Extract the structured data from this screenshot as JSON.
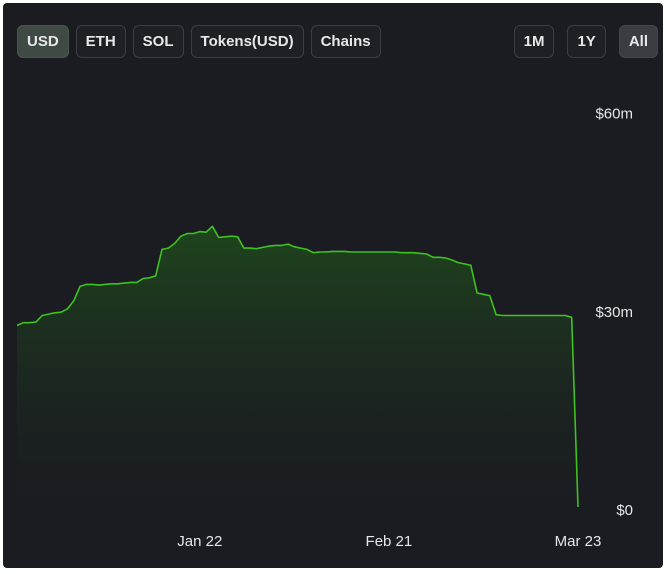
{
  "controls": {
    "currency": [
      "USD",
      "ETH",
      "SOL",
      "Tokens(USD)",
      "Chains"
    ],
    "ranges": [
      "1M",
      "1Y",
      "All"
    ]
  },
  "chart_data": {
    "type": "area",
    "categories": [
      null,
      null,
      null,
      null,
      null,
      null,
      null,
      null,
      null,
      null,
      null,
      null,
      null,
      null,
      null,
      null,
      null,
      null,
      null,
      null,
      null,
      null,
      null,
      null,
      null,
      null,
      null,
      null,
      null,
      "Jan 22",
      null,
      null,
      null,
      null,
      null,
      null,
      null,
      null,
      null,
      null,
      null,
      null,
      null,
      null,
      null,
      null,
      null,
      null,
      null,
      null,
      null,
      null,
      null,
      null,
      null,
      null,
      null,
      null,
      null,
      "Feb 21",
      null,
      null,
      null,
      null,
      null,
      null,
      null,
      null,
      null,
      null,
      null,
      null,
      null,
      null,
      null,
      null,
      null,
      null,
      null,
      null,
      null,
      null,
      null,
      null,
      null,
      null,
      null,
      null,
      null,
      "Mar 23"
    ],
    "series": [
      {
        "color": "#3ec21f",
        "values": [
          28.1,
          28.5,
          28.5,
          28.6,
          29.6,
          29.8,
          30.0,
          30.1,
          30.6,
          31.8,
          34.0,
          34.3,
          34.3,
          34.2,
          34.3,
          34.4,
          34.4,
          34.5,
          34.6,
          34.6,
          35.2,
          35.3,
          35.6,
          39.6,
          39.8,
          40.5,
          41.6,
          42.0,
          42.0,
          42.3,
          42.2,
          43.1,
          41.4,
          41.5,
          41.6,
          41.5,
          39.8,
          39.8,
          39.7,
          39.9,
          40.1,
          40.2,
          40.2,
          40.4,
          40.0,
          39.8,
          39.6,
          39.1,
          39.2,
          39.2,
          39.3,
          39.3,
          39.3,
          39.2,
          39.2,
          39.2,
          39.2,
          39.2,
          39.2,
          39.2,
          39.2,
          39.1,
          39.1,
          39.1,
          39.0,
          38.9,
          38.4,
          38.4,
          38.3,
          38.0,
          37.6,
          37.4,
          37.2,
          33.0,
          32.8,
          32.6,
          29.7,
          29.6,
          29.6,
          29.6,
          29.6,
          29.6,
          29.6,
          29.6,
          29.6,
          29.6,
          29.6,
          29.6,
          29.3,
          0.6
        ]
      }
    ],
    "ylim": [
      0,
      66
    ],
    "yticks": [
      {
        "value": 0,
        "label": "$0"
      },
      {
        "value": 30,
        "label": "$30m"
      },
      {
        "value": 60,
        "label": "$60m"
      }
    ],
    "grid": false
  }
}
